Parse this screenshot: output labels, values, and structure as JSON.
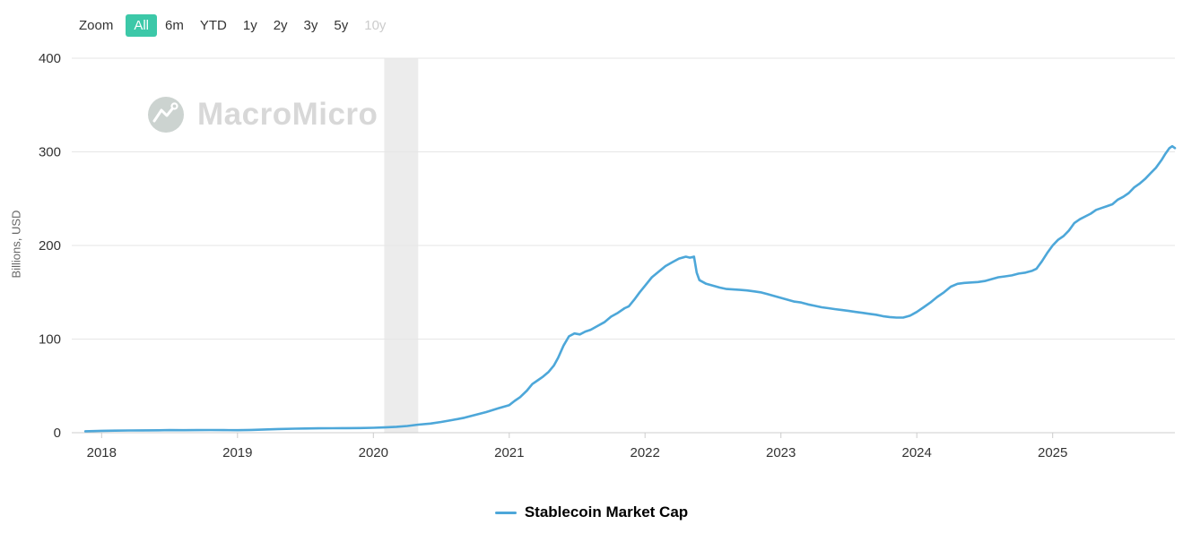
{
  "toolbar": {
    "zoom_label": "Zoom",
    "selected_color": "#3cc8a8",
    "buttons": [
      {
        "label": "All",
        "state": "selected"
      },
      {
        "label": "6m",
        "state": "normal"
      },
      {
        "label": "YTD",
        "state": "normal"
      },
      {
        "label": "1y",
        "state": "normal"
      },
      {
        "label": "2y",
        "state": "normal"
      },
      {
        "label": "3y",
        "state": "normal"
      },
      {
        "label": "5y",
        "state": "normal"
      },
      {
        "label": "10y",
        "state": "disabled"
      }
    ]
  },
  "watermark": {
    "text": "MacroMicro"
  },
  "chart_data": {
    "type": "line",
    "title": "",
    "xlabel": "",
    "ylabel": "Billions, USD",
    "x_ticks": [
      2018,
      2019,
      2020,
      2021,
      2022,
      2023,
      2024,
      2025
    ],
    "y_ticks": [
      0,
      100,
      200,
      300,
      400
    ],
    "xlim": [
      2017.78,
      2025.9
    ],
    "ylim": [
      0,
      400
    ],
    "grid": "horizontal",
    "legend_position": "bottom",
    "plot_bands": [
      {
        "from": 2020.08,
        "to": 2020.33,
        "color": "#ececec"
      }
    ],
    "series": [
      {
        "name": "Stablecoin Market Cap",
        "color": "#4da7d9",
        "points": [
          [
            2017.88,
            1.5
          ],
          [
            2018.0,
            2.0
          ],
          [
            2018.1,
            2.2
          ],
          [
            2018.2,
            2.4
          ],
          [
            2018.3,
            2.5
          ],
          [
            2018.42,
            2.6
          ],
          [
            2018.5,
            2.8
          ],
          [
            2018.6,
            2.7
          ],
          [
            2018.7,
            2.8
          ],
          [
            2018.8,
            2.9
          ],
          [
            2018.9,
            2.8
          ],
          [
            2019.0,
            2.7
          ],
          [
            2019.1,
            3.0
          ],
          [
            2019.2,
            3.4
          ],
          [
            2019.3,
            3.9
          ],
          [
            2019.42,
            4.3
          ],
          [
            2019.5,
            4.5
          ],
          [
            2019.6,
            4.7
          ],
          [
            2019.7,
            4.8
          ],
          [
            2019.8,
            4.9
          ],
          [
            2019.9,
            5.0
          ],
          [
            2020.0,
            5.3
          ],
          [
            2020.08,
            5.6
          ],
          [
            2020.17,
            6.3
          ],
          [
            2020.25,
            7.2
          ],
          [
            2020.33,
            8.6
          ],
          [
            2020.42,
            9.8
          ],
          [
            2020.5,
            11.5
          ],
          [
            2020.58,
            13.5
          ],
          [
            2020.67,
            16.0
          ],
          [
            2020.75,
            19.0
          ],
          [
            2020.83,
            22.0
          ],
          [
            2020.92,
            26.0
          ],
          [
            2021.0,
            29.5
          ],
          [
            2021.04,
            34.0
          ],
          [
            2021.08,
            38.0
          ],
          [
            2021.13,
            45.0
          ],
          [
            2021.17,
            52.0
          ],
          [
            2021.21,
            56.0
          ],
          [
            2021.25,
            60.0
          ],
          [
            2021.29,
            65.0
          ],
          [
            2021.33,
            72.0
          ],
          [
            2021.36,
            80.0
          ],
          [
            2021.4,
            93.0
          ],
          [
            2021.44,
            103.0
          ],
          [
            2021.48,
            106.0
          ],
          [
            2021.52,
            105.0
          ],
          [
            2021.56,
            108.0
          ],
          [
            2021.6,
            110.0
          ],
          [
            2021.65,
            114.0
          ],
          [
            2021.7,
            118.0
          ],
          [
            2021.75,
            124.0
          ],
          [
            2021.8,
            128.0
          ],
          [
            2021.85,
            133.0
          ],
          [
            2021.88,
            135.0
          ],
          [
            2021.92,
            142.0
          ],
          [
            2021.96,
            150.0
          ],
          [
            2022.0,
            157.0
          ],
          [
            2022.05,
            166.0
          ],
          [
            2022.1,
            172.0
          ],
          [
            2022.15,
            178.0
          ],
          [
            2022.2,
            182.0
          ],
          [
            2022.25,
            186.0
          ],
          [
            2022.3,
            188.0
          ],
          [
            2022.33,
            187.0
          ],
          [
            2022.36,
            188.0
          ],
          [
            2022.38,
            171.0
          ],
          [
            2022.4,
            163.0
          ],
          [
            2022.45,
            159.0
          ],
          [
            2022.5,
            157.0
          ],
          [
            2022.55,
            155.0
          ],
          [
            2022.6,
            153.5
          ],
          [
            2022.65,
            153.0
          ],
          [
            2022.7,
            152.5
          ],
          [
            2022.75,
            152.0
          ],
          [
            2022.8,
            151.0
          ],
          [
            2022.85,
            150.0
          ],
          [
            2022.9,
            148.0
          ],
          [
            2022.95,
            146.0
          ],
          [
            2023.0,
            144.0
          ],
          [
            2023.05,
            142.0
          ],
          [
            2023.1,
            140.0
          ],
          [
            2023.15,
            139.0
          ],
          [
            2023.2,
            137.0
          ],
          [
            2023.25,
            135.5
          ],
          [
            2023.3,
            134.0
          ],
          [
            2023.35,
            133.0
          ],
          [
            2023.4,
            132.0
          ],
          [
            2023.45,
            131.0
          ],
          [
            2023.5,
            130.0
          ],
          [
            2023.55,
            129.0
          ],
          [
            2023.6,
            128.0
          ],
          [
            2023.65,
            127.0
          ],
          [
            2023.7,
            126.0
          ],
          [
            2023.75,
            124.5
          ],
          [
            2023.8,
            123.5
          ],
          [
            2023.85,
            123.0
          ],
          [
            2023.9,
            123.0
          ],
          [
            2023.95,
            125.0
          ],
          [
            2024.0,
            129.0
          ],
          [
            2024.05,
            134.0
          ],
          [
            2024.1,
            139.0
          ],
          [
            2024.15,
            145.0
          ],
          [
            2024.2,
            150.0
          ],
          [
            2024.25,
            156.0
          ],
          [
            2024.3,
            159.0
          ],
          [
            2024.35,
            160.0
          ],
          [
            2024.4,
            160.5
          ],
          [
            2024.45,
            161.0
          ],
          [
            2024.5,
            162.0
          ],
          [
            2024.55,
            164.0
          ],
          [
            2024.6,
            166.0
          ],
          [
            2024.65,
            167.0
          ],
          [
            2024.7,
            168.0
          ],
          [
            2024.75,
            170.0
          ],
          [
            2024.8,
            171.0
          ],
          [
            2024.85,
            173.0
          ],
          [
            2024.88,
            175.0
          ],
          [
            2024.92,
            183.0
          ],
          [
            2024.96,
            192.0
          ],
          [
            2025.0,
            200.0
          ],
          [
            2025.04,
            206.0
          ],
          [
            2025.08,
            210.0
          ],
          [
            2025.12,
            216.0
          ],
          [
            2025.16,
            224.0
          ],
          [
            2025.2,
            228.0
          ],
          [
            2025.24,
            231.0
          ],
          [
            2025.28,
            234.0
          ],
          [
            2025.32,
            238.0
          ],
          [
            2025.36,
            240.0
          ],
          [
            2025.4,
            242.0
          ],
          [
            2025.44,
            244.0
          ],
          [
            2025.48,
            249.0
          ],
          [
            2025.52,
            252.0
          ],
          [
            2025.56,
            256.0
          ],
          [
            2025.6,
            262.0
          ],
          [
            2025.64,
            266.0
          ],
          [
            2025.68,
            271.0
          ],
          [
            2025.72,
            277.0
          ],
          [
            2025.76,
            283.0
          ],
          [
            2025.8,
            291.0
          ],
          [
            2025.83,
            298.0
          ],
          [
            2025.86,
            304.0
          ],
          [
            2025.88,
            306.0
          ],
          [
            2025.9,
            304.0
          ]
        ]
      }
    ]
  }
}
